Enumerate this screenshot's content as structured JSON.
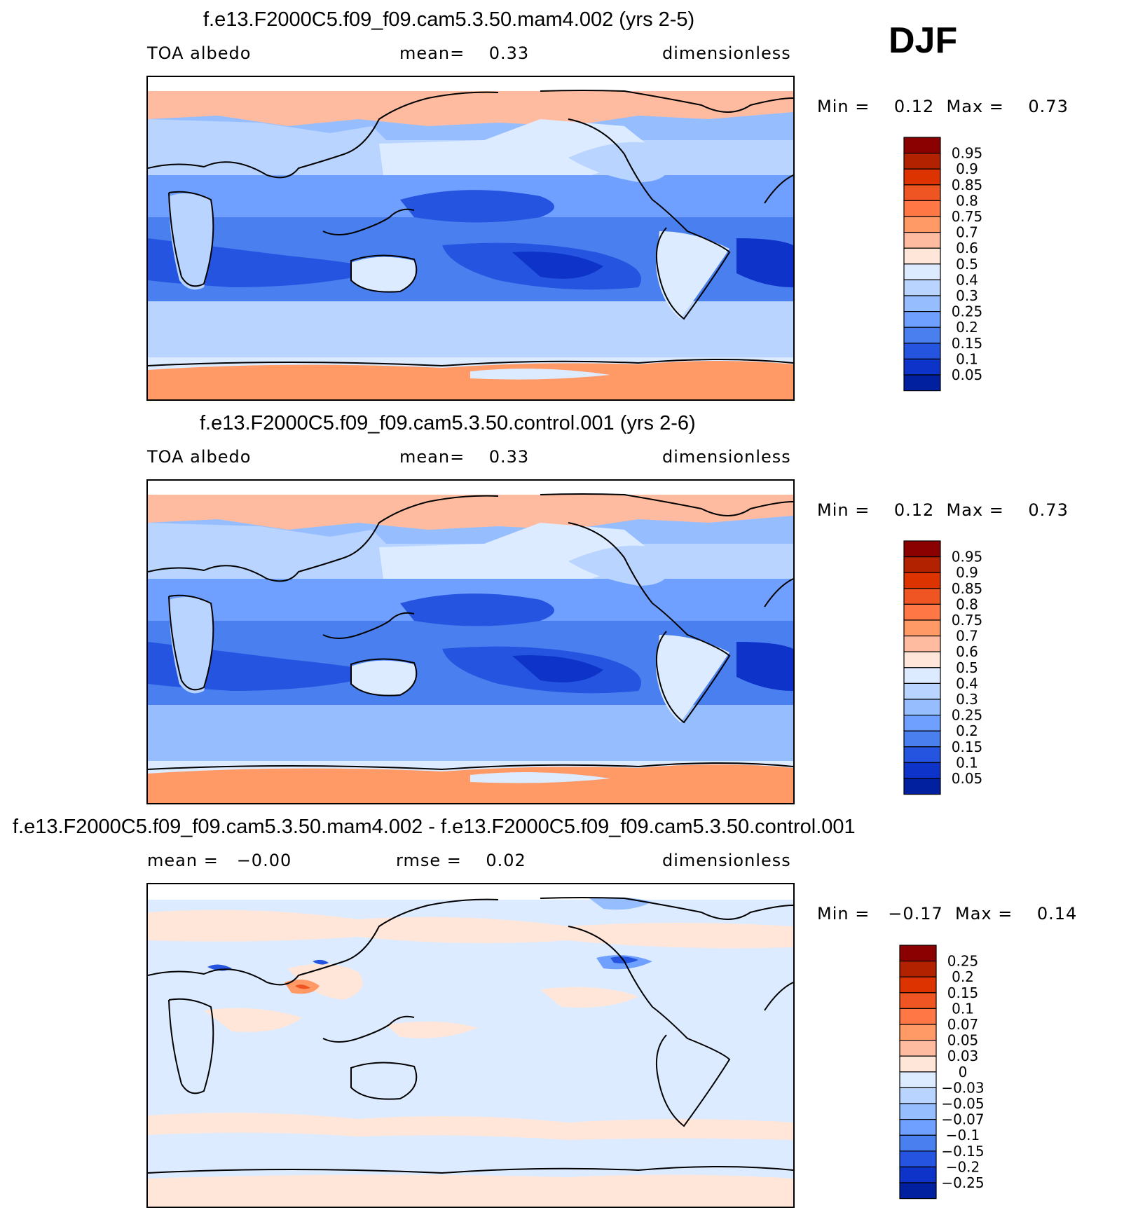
{
  "season": "DJF",
  "panels": [
    {
      "title": "f.e13.F2000C5.f09_f09.cam5.3.50.mam4.002 (yrs 2-5)",
      "left_label": "TOA albedo",
      "center_label": "mean=    0.33",
      "right_label": "dimensionless",
      "minmax": "Min =    0.12  Max =    0.73",
      "colorbar": {
        "labels": [
          "0.95",
          "0.9",
          "0.85",
          "0.8",
          "0.75",
          "0.7",
          "0.6",
          "0.5",
          "0.4",
          "0.3",
          "0.25",
          "0.2",
          "0.15",
          "0.1",
          "0.05"
        ],
        "colors": [
          "#8B0000",
          "#B22200",
          "#DD3300",
          "#EE5522",
          "#FF7744",
          "#FF9966",
          "#FFBBA0",
          "#FFE6D8",
          "#DCEBFF",
          "#B8D4FF",
          "#96BEFF",
          "#6F9FFF",
          "#4A7FF0",
          "#2555E0",
          "#0D33C8",
          "#0020A0"
        ]
      }
    },
    {
      "title": "f.e13.F2000C5.f09_f09.cam5.3.50.control.001 (yrs 2-6)",
      "left_label": "TOA albedo",
      "center_label": "mean=    0.33",
      "right_label": "dimensionless",
      "minmax": "Min =    0.12  Max =    0.73",
      "colorbar": {
        "labels": [
          "0.95",
          "0.9",
          "0.85",
          "0.8",
          "0.75",
          "0.7",
          "0.6",
          "0.5",
          "0.4",
          "0.3",
          "0.25",
          "0.2",
          "0.15",
          "0.1",
          "0.05"
        ],
        "colors": [
          "#8B0000",
          "#B22200",
          "#DD3300",
          "#EE5522",
          "#FF7744",
          "#FF9966",
          "#FFBBA0",
          "#FFE6D8",
          "#DCEBFF",
          "#B8D4FF",
          "#96BEFF",
          "#6F9FFF",
          "#4A7FF0",
          "#2555E0",
          "#0D33C8",
          "#0020A0"
        ]
      }
    },
    {
      "title": "f.e13.F2000C5.f09_f09.cam5.3.50.mam4.002 - f.e13.F2000C5.f09_f09.cam5.3.50.control.001",
      "left_label": "mean =   −0.00",
      "center_label": "rmse =    0.02",
      "right_label": "dimensionless",
      "minmax": "Min =   −0.17  Max =    0.14",
      "colorbar": {
        "labels": [
          "0.25",
          "0.2",
          "0.15",
          "0.1",
          "0.07",
          "0.05",
          "0.03",
          "0",
          "−0.03",
          "−0.05",
          "−0.07",
          "−0.1",
          "−0.15",
          "−0.2",
          "−0.25"
        ],
        "colors": [
          "#8B0000",
          "#B22200",
          "#DD3300",
          "#EE5522",
          "#FF7744",
          "#FF9966",
          "#FFBBA0",
          "#FFE6D8",
          "#DCEBFF",
          "#B8D4FF",
          "#96BEFF",
          "#6F9FFF",
          "#4A7FF0",
          "#2555E0",
          "#0D33C8",
          "#0020A0"
        ]
      }
    }
  ],
  "chart_data": [
    {
      "type": "heatmap",
      "title": "f.e13.F2000C5.f09_f09.cam5.3.50.mam4.002 (yrs 2-5)",
      "variable": "TOA albedo",
      "units": "dimensionless",
      "mean": 0.33,
      "min": 0.12,
      "max": 0.73,
      "contour_levels": [
        0.05,
        0.1,
        0.15,
        0.2,
        0.25,
        0.3,
        0.4,
        0.5,
        0.6,
        0.7,
        0.75,
        0.8,
        0.85,
        0.9,
        0.95
      ]
    },
    {
      "type": "heatmap",
      "title": "f.e13.F2000C5.f09_f09.cam5.3.50.control.001 (yrs 2-6)",
      "variable": "TOA albedo",
      "units": "dimensionless",
      "mean": 0.33,
      "min": 0.12,
      "max": 0.73,
      "contour_levels": [
        0.05,
        0.1,
        0.15,
        0.2,
        0.25,
        0.3,
        0.4,
        0.5,
        0.6,
        0.7,
        0.75,
        0.8,
        0.85,
        0.9,
        0.95
      ]
    },
    {
      "type": "heatmap",
      "title": "f.e13.F2000C5.f09_f09.cam5.3.50.mam4.002 - f.e13.F2000C5.f09_f09.cam5.3.50.control.001",
      "units": "dimensionless",
      "mean": -0.0,
      "rmse": 0.02,
      "min": -0.17,
      "max": 0.14,
      "contour_levels": [
        -0.25,
        -0.2,
        -0.15,
        -0.1,
        -0.07,
        -0.05,
        -0.03,
        0,
        0.03,
        0.05,
        0.07,
        0.1,
        0.15,
        0.2,
        0.25
      ]
    }
  ]
}
